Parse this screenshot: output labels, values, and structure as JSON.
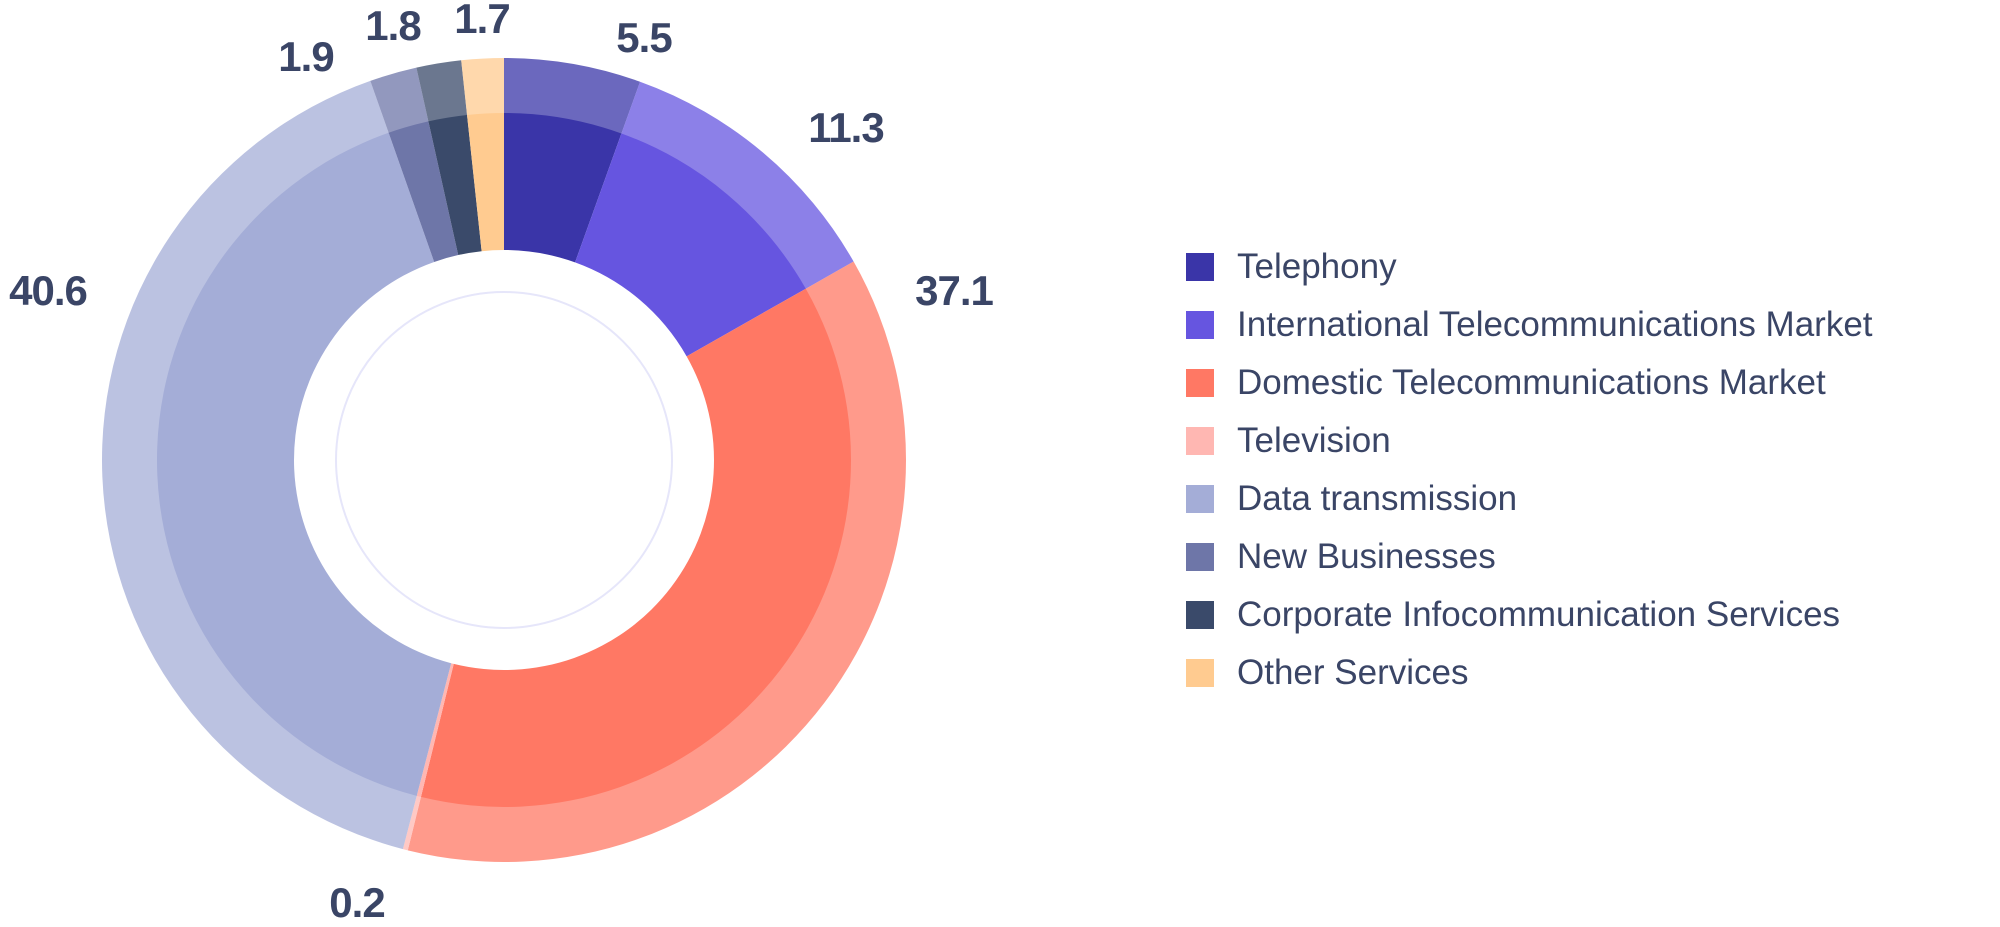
{
  "chart_data": {
    "type": "pie",
    "subtype": "donut",
    "title": "",
    "categories": [
      "Telephony",
      "International Telecommunications Market",
      "Domestic Telecommunications Market",
      "Television",
      "Data transmission",
      "New Businesses",
      "Corporate Infocommunication Services",
      "Other Services"
    ],
    "values": [
      5.5,
      11.3,
      37.1,
      0.2,
      40.6,
      1.9,
      1.8,
      1.7
    ],
    "value_labels": [
      "5.5",
      "11.3",
      "37.1",
      "0.2",
      "40.6",
      "1.9",
      "1.8",
      "1.7"
    ],
    "colors": [
      "#3a35a8",
      "#6655e0",
      "#ff7864",
      "#ffb7b2",
      "#a4add7",
      "#6e76a8",
      "#3a4a6a",
      "#ffcb90"
    ],
    "legend_position": "right"
  }
}
